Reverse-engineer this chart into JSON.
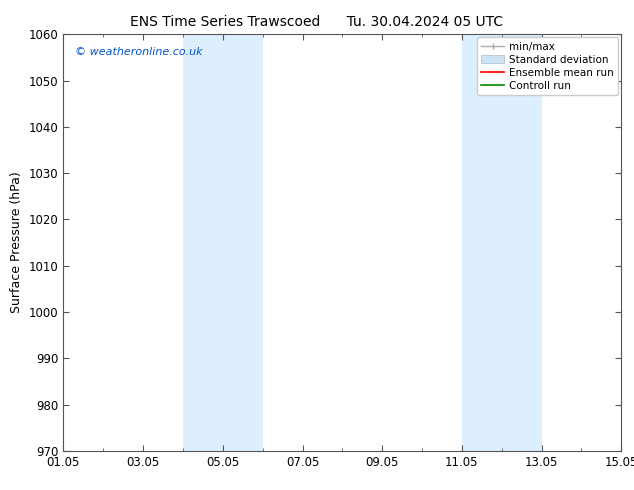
{
  "title_left": "ENS Time Series Trawscoed",
  "title_right": "Tu. 30.04.2024 05 UTC",
  "ylabel": "Surface Pressure (hPa)",
  "ylim": [
    970,
    1060
  ],
  "yticks": [
    970,
    980,
    990,
    1000,
    1010,
    1020,
    1030,
    1040,
    1050,
    1060
  ],
  "xtick_labels": [
    "01.05",
    "03.05",
    "05.05",
    "07.05",
    "09.05",
    "11.05",
    "13.05",
    "15.05"
  ],
  "xtick_days": [
    1,
    3,
    5,
    7,
    9,
    11,
    13,
    15
  ],
  "shaded_bands": [
    {
      "start_day": 4,
      "end_day": 6,
      "color": "#ddeeff"
    },
    {
      "start_day": 11,
      "end_day": 13,
      "color": "#ddeeff"
    }
  ],
  "watermark_text": "© weatheronline.co.uk",
  "watermark_color": "#0055cc",
  "legend_entries": [
    {
      "label": "min/max",
      "color": "#aaaaaa",
      "type": "minmax"
    },
    {
      "label": "Standard deviation",
      "color": "#ccddee",
      "type": "fill"
    },
    {
      "label": "Ensemble mean run",
      "color": "#ff0000",
      "type": "line"
    },
    {
      "label": "Controll run",
      "color": "#008800",
      "type": "line"
    }
  ],
  "bg_color": "#ffffff",
  "plot_bg_color": "#ffffff",
  "spine_color": "#555555",
  "title_fontsize": 10,
  "tick_fontsize": 8.5,
  "label_fontsize": 9,
  "legend_fontsize": 7.5
}
